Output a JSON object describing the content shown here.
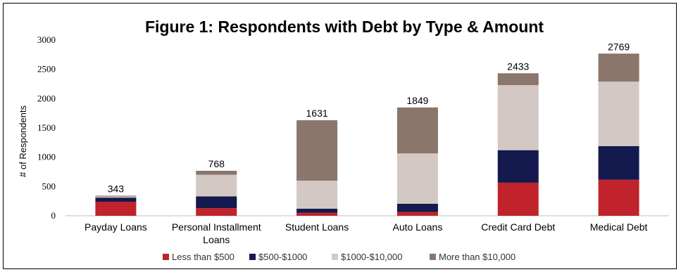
{
  "chart_data": {
    "type": "bar",
    "stacked": true,
    "title": "Figure 1: Respondents with Debt by Type & Amount",
    "ylabel": "# of Respondents",
    "xlabel": "",
    "ylim": [
      0,
      3000
    ],
    "yticks": [
      "0",
      "500",
      "1000",
      "1500",
      "2000",
      "2500",
      "3000"
    ],
    "grid": false,
    "legend_position": "bottom",
    "categories": [
      [
        "Payday Loans"
      ],
      [
        "Personal Installment",
        "Loans"
      ],
      [
        "Student Loans"
      ],
      [
        "Auto Loans"
      ],
      [
        "Credit Card Debt"
      ],
      [
        "Medical Debt"
      ]
    ],
    "totals": [
      343,
      768,
      1631,
      1849,
      2433,
      2769
    ],
    "total_labels": [
      "343",
      "768",
      "1631",
      "1849",
      "2433",
      "2769"
    ],
    "series": [
      {
        "name": "Less than $500",
        "color": "#c0232b",
        "values": [
          240,
          130,
          50,
          65,
          565,
          615
        ]
      },
      {
        "name": "$500-$1000",
        "color": "#141a4e",
        "values": [
          70,
          200,
          70,
          140,
          555,
          575
        ]
      },
      {
        "name": "$1000-$10,000",
        "color": "#d3c8c4",
        "values": [
          20,
          370,
          480,
          860,
          1110,
          1100
        ]
      },
      {
        "name": "More than $10,000",
        "color": "#8a766a",
        "values": [
          13,
          68,
          1031,
          784,
          203,
          479
        ]
      }
    ]
  }
}
